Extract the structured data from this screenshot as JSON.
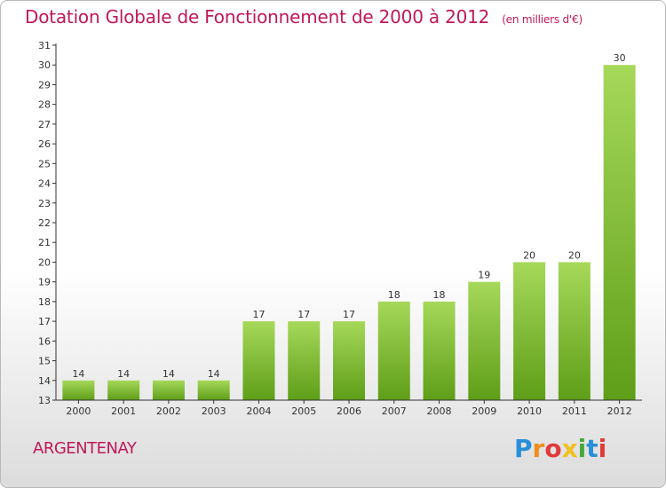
{
  "header": {
    "title": "Dotation Globale de Fonctionnement de 2000 à 2012",
    "subtitle": "(en milliers d'€)"
  },
  "footer": {
    "commune": "ARGENTENAY",
    "logo_text": "Proxiti"
  },
  "colors": {
    "title": "#c0185a",
    "bar_top": "#a6d85a",
    "bar_bottom": "#5e9e18",
    "axis": "#333333",
    "logo_letters": [
      "#2a8fd8",
      "#f08c1c",
      "#e03a3a",
      "#f0c020",
      "#4aa838",
      "#2a8fd8",
      "#e03a3a"
    ]
  },
  "chart_data": {
    "type": "bar",
    "title": "Dotation Globale de Fonctionnement de 2000 à 2012",
    "subtitle": "(en milliers d'€)",
    "categories": [
      "2000",
      "2001",
      "2002",
      "2003",
      "2004",
      "2005",
      "2006",
      "2007",
      "2008",
      "2009",
      "2010",
      "2011",
      "2012"
    ],
    "values": [
      14,
      14,
      14,
      14,
      17,
      17,
      17,
      18,
      18,
      19,
      20,
      20,
      30
    ],
    "data_labels": [
      "14",
      "14",
      "14",
      "14",
      "17",
      "17",
      "17",
      "18",
      "18",
      "19",
      "20",
      "20",
      "30"
    ],
    "ylim": [
      13,
      31
    ],
    "yticks": [
      "13",
      "14",
      "15",
      "16",
      "17",
      "18",
      "19",
      "20",
      "21",
      "22",
      "23",
      "24",
      "25",
      "26",
      "27",
      "28",
      "29",
      "30",
      "31"
    ],
    "xlabel": "",
    "ylabel": "",
    "grid": false,
    "legend": "none"
  }
}
